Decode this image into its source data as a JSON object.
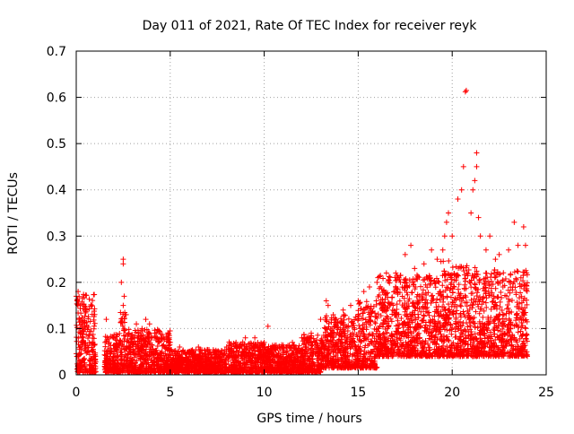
{
  "chart_data": {
    "type": "scatter",
    "title": "Day 011 of 2021, Rate Of TEC Index for receiver reyk",
    "xlabel": "GPS time / hours",
    "ylabel": "ROTI / TECUs",
    "xlim": [
      0,
      25
    ],
    "ylim": [
      0,
      0.7
    ],
    "x_ticks": [
      0,
      5,
      10,
      15,
      20,
      25
    ],
    "x_tick_labels": [
      "0",
      "5",
      "10",
      "15",
      "20",
      "25"
    ],
    "y_ticks": [
      0,
      0.1,
      0.2,
      0.3,
      0.4,
      0.5,
      0.6,
      0.7
    ],
    "y_tick_labels": [
      "0",
      "0.1",
      "0.2",
      "0.3",
      "0.4",
      "0.5",
      "0.6",
      "0.7"
    ],
    "grid": true,
    "marker": "+",
    "series_color": "#ff0000",
    "coverage_x": [
      0,
      24
    ],
    "points": [
      [
        0.0,
        0.17
      ],
      [
        0.05,
        0.16
      ],
      [
        0.1,
        0.18
      ],
      [
        0.15,
        0.12
      ],
      [
        0.2,
        0.1
      ],
      [
        0.3,
        0.08
      ],
      [
        0.5,
        0.06
      ],
      [
        0.7,
        0.07
      ],
      [
        0.9,
        0.05
      ],
      [
        1.0,
        0.04
      ],
      [
        1.6,
        0.12
      ],
      [
        2.0,
        0.08
      ],
      [
        2.2,
        0.06
      ],
      [
        2.5,
        0.25
      ],
      [
        2.5,
        0.24
      ],
      [
        2.4,
        0.2
      ],
      [
        2.55,
        0.17
      ],
      [
        2.5,
        0.15
      ],
      [
        2.6,
        0.13
      ],
      [
        3.2,
        0.11
      ],
      [
        3.5,
        0.1
      ],
      [
        3.7,
        0.12
      ],
      [
        3.9,
        0.11
      ],
      [
        4.2,
        0.09
      ],
      [
        4.5,
        0.08
      ],
      [
        5.0,
        0.07
      ],
      [
        5.5,
        0.06
      ],
      [
        6.0,
        0.05
      ],
      [
        6.5,
        0.06
      ],
      [
        7.0,
        0.05
      ],
      [
        7.5,
        0.05
      ],
      [
        8.0,
        0.06
      ],
      [
        8.5,
        0.07
      ],
      [
        9.0,
        0.08
      ],
      [
        9.5,
        0.08
      ],
      [
        10.0,
        0.07
      ],
      [
        10.2,
        0.105
      ],
      [
        10.5,
        0.06
      ],
      [
        11.0,
        0.06
      ],
      [
        11.5,
        0.07
      ],
      [
        12.0,
        0.08
      ],
      [
        12.5,
        0.09
      ],
      [
        13.0,
        0.12
      ],
      [
        13.3,
        0.16
      ],
      [
        13.4,
        0.15
      ],
      [
        13.8,
        0.12
      ],
      [
        14.2,
        0.14
      ],
      [
        14.6,
        0.15
      ],
      [
        15.0,
        0.16
      ],
      [
        15.3,
        0.18
      ],
      [
        15.6,
        0.19
      ],
      [
        16.0,
        0.2
      ],
      [
        16.5,
        0.22
      ],
      [
        17.0,
        0.22
      ],
      [
        17.5,
        0.26
      ],
      [
        17.8,
        0.28
      ],
      [
        18.0,
        0.23
      ],
      [
        18.5,
        0.24
      ],
      [
        18.9,
        0.27
      ],
      [
        19.2,
        0.25
      ],
      [
        19.5,
        0.27
      ],
      [
        19.6,
        0.3
      ],
      [
        19.7,
        0.33
      ],
      [
        19.8,
        0.35
      ],
      [
        20.0,
        0.3
      ],
      [
        20.3,
        0.38
      ],
      [
        20.5,
        0.4
      ],
      [
        20.6,
        0.45
      ],
      [
        20.7,
        0.612
      ],
      [
        20.75,
        0.615
      ],
      [
        21.0,
        0.35
      ],
      [
        21.1,
        0.4
      ],
      [
        21.2,
        0.42
      ],
      [
        21.3,
        0.45
      ],
      [
        21.3,
        0.48
      ],
      [
        21.4,
        0.34
      ],
      [
        21.5,
        0.3
      ],
      [
        21.8,
        0.27
      ],
      [
        22.0,
        0.3
      ],
      [
        22.3,
        0.25
      ],
      [
        22.5,
        0.26
      ],
      [
        23.0,
        0.27
      ],
      [
        23.3,
        0.33
      ],
      [
        23.5,
        0.28
      ],
      [
        23.8,
        0.32
      ],
      [
        23.9,
        0.28
      ]
    ]
  }
}
